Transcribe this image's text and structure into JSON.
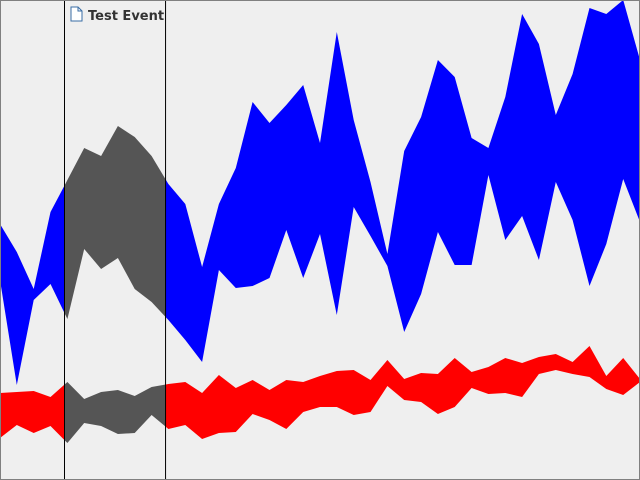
{
  "chart_data": {
    "type": "area",
    "title": "",
    "xlabel": "",
    "ylabel": "",
    "xlim": [
      0,
      38
    ],
    "ylim": [
      0,
      480
    ],
    "grid": false,
    "x": [
      0,
      1,
      2,
      3,
      4,
      5,
      6,
      7,
      8,
      9,
      10,
      11,
      12,
      13,
      14,
      15,
      16,
      17,
      18,
      19,
      20,
      21,
      22,
      23,
      24,
      25,
      26,
      27,
      28,
      29,
      30,
      31,
      32,
      33,
      34,
      35,
      36,
      37,
      38
    ],
    "series": [
      {
        "color": "#0000ff",
        "upper": [
          256,
          228,
          191,
          268,
          300,
          332,
          324,
          354,
          343,
          324,
          296,
          276,
          213,
          276,
          312,
          378,
          357,
          375,
          395,
          337,
          448,
          360,
          298,
          226,
          329,
          363,
          420,
          403,
          342,
          332,
          383,
          466,
          436,
          365,
          406,
          472,
          466,
          480,
          420
        ],
        "lower": [
          200,
          95,
          180,
          196,
          161,
          231,
          211,
          222,
          191,
          178,
          160,
          140,
          118,
          210,
          192,
          194,
          202,
          250,
          202,
          246,
          165,
          273,
          244,
          214,
          148,
          186,
          248,
          215,
          215,
          305,
          240,
          264,
          220,
          298,
          260,
          194,
          236,
          301,
          258
        ]
      },
      {
        "color": "#ff0000",
        "upper": [
          87,
          88,
          89,
          83,
          98,
          81,
          88,
          90,
          84,
          93,
          96,
          98,
          87,
          105,
          92,
          100,
          90,
          100,
          98,
          104,
          109,
          110,
          100,
          120,
          101,
          107,
          106,
          122,
          108,
          113,
          122,
          117,
          123,
          126,
          118,
          134,
          104,
          122,
          101
        ],
        "lower": [
          42,
          55,
          47,
          54,
          37,
          57,
          54,
          46,
          47,
          65,
          51,
          55,
          41,
          47,
          48,
          66,
          60,
          51,
          68,
          73,
          73,
          65,
          68,
          94,
          80,
          78,
          66,
          73,
          92,
          86,
          87,
          83,
          106,
          110,
          106,
          103,
          91,
          85,
          98
        ]
      }
    ],
    "event_window": {
      "label": "Test Event",
      "x_start": 3.8,
      "x_end": 9.8,
      "overlay_color": "#555555"
    },
    "event_icon": "document-icon"
  }
}
